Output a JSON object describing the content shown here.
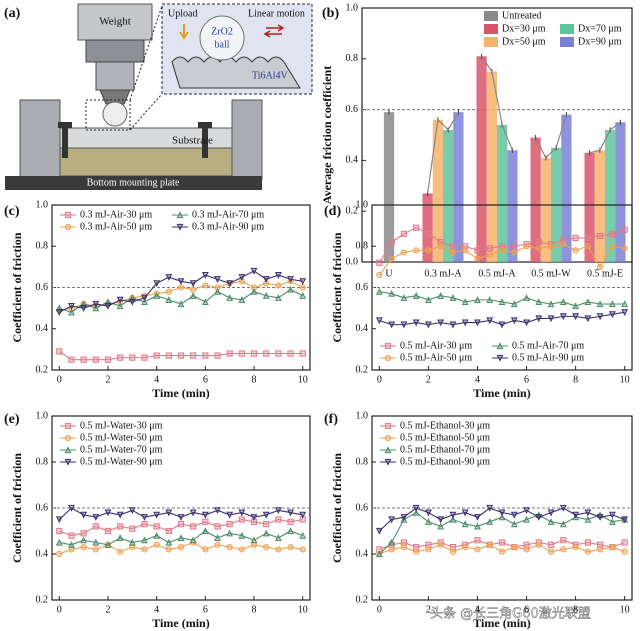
{
  "diagram": {
    "panel_label": "(a)",
    "labels": {
      "weight": "Weight",
      "upload": "Upload",
      "ball_material": "ZrO2",
      "ball": "ball",
      "motion": "Linear motion",
      "sample": "Ti6Al4V",
      "substrate": "Substrate",
      "plate": "Bottom mounting plate"
    }
  },
  "watermark": "头条 @长三角G60激光联盟",
  "chart_data": [
    {
      "type": "bar",
      "panel_label": "(b)",
      "ylabel": "Average friction coefficient",
      "categories": [
        "U",
        "0.3 mJ-A",
        "0.5 mJ-A",
        "0.5 mJ-W",
        "0.5 mJ-E"
      ],
      "series": [
        {
          "name": "Untreated",
          "color": "#8a8a8a",
          "values": [
            0.59,
            null,
            null,
            null,
            null
          ],
          "errors": [
            0.01,
            null,
            null,
            null,
            null
          ]
        },
        {
          "name": "Dx=30 μm",
          "color": "#d9556a",
          "values": [
            null,
            0.27,
            0.81,
            0.49,
            0.43
          ],
          "errors": [
            null,
            0.01,
            0.01,
            0.01,
            0.01
          ]
        },
        {
          "name": "Dx=50 μm",
          "color": "#f7b26b",
          "values": [
            null,
            0.56,
            0.75,
            0.41,
            0.44
          ],
          "errors": [
            null,
            0.01,
            0.01,
            0.01,
            0.01
          ]
        },
        {
          "name": "Dx=70 μm",
          "color": "#5fc49a",
          "values": [
            null,
            0.52,
            0.54,
            0.45,
            0.52
          ],
          "errors": [
            null,
            0.01,
            0.01,
            0.01,
            0.01
          ]
        },
        {
          "name": "Dx=90 μm",
          "color": "#7b7fd6",
          "values": [
            null,
            0.59,
            0.44,
            0.58,
            0.55
          ],
          "errors": [
            null,
            0.01,
            0.01,
            0.01,
            0.01
          ]
        }
      ],
      "ylim": [
        0,
        1
      ],
      "yticks": [
        {
          "value": 0,
          "label": "0.0"
        },
        0.2,
        0.4,
        0.6,
        0.8,
        {
          "value": 1,
          "label": "1.0"
        }
      ],
      "ref_line": 0.6
    },
    {
      "type": "line",
      "panel_label": "(c)",
      "xlabel": "Time (min)",
      "ylabel": "Coefficient of friction",
      "legend": "upper left",
      "x": [
        0,
        0.5,
        1,
        1.5,
        2,
        2.5,
        3,
        3.5,
        4,
        4.5,
        5,
        5.5,
        6,
        6.5,
        7,
        7.5,
        8,
        8.5,
        9,
        9.5,
        10
      ],
      "series": [
        {
          "name": "0.3 mJ-Air-30 μm",
          "color": "#e07a8a",
          "marker": "square",
          "values": [
            0.29,
            0.25,
            0.25,
            0.25,
            0.25,
            0.26,
            0.26,
            0.26,
            0.27,
            0.27,
            0.27,
            0.27,
            0.27,
            0.27,
            0.28,
            0.28,
            0.28,
            0.28,
            0.28,
            0.28,
            0.28
          ]
        },
        {
          "name": "0.3 mJ-Air-50 μm",
          "color": "#f0a050",
          "marker": "circle",
          "values": [
            0.49,
            0.5,
            0.52,
            0.51,
            0.52,
            0.53,
            0.55,
            0.56,
            0.57,
            0.58,
            0.6,
            0.59,
            0.61,
            0.6,
            0.62,
            0.63,
            0.6,
            0.62,
            0.61,
            0.63,
            0.6
          ]
        },
        {
          "name": "0.3 mJ-Air-70 μm",
          "color": "#4c8c6a",
          "marker": "tri-up",
          "values": [
            0.5,
            0.48,
            0.52,
            0.5,
            0.53,
            0.51,
            0.55,
            0.53,
            0.56,
            0.54,
            0.52,
            0.56,
            0.53,
            0.58,
            0.55,
            0.54,
            0.58,
            0.56,
            0.55,
            0.59,
            0.56
          ]
        },
        {
          "name": "0.3 mJ-Air-90 μm",
          "color": "#3b2f6e",
          "marker": "tri-down",
          "values": [
            0.48,
            0.51,
            0.5,
            0.52,
            0.51,
            0.54,
            0.53,
            0.55,
            0.62,
            0.65,
            0.63,
            0.62,
            0.66,
            0.64,
            0.62,
            0.65,
            0.68,
            0.64,
            0.66,
            0.64,
            0.63
          ]
        }
      ],
      "xlim": [
        -0.3,
        10.3
      ],
      "xticks": [
        0,
        2,
        4,
        6,
        8,
        10
      ],
      "ylim": [
        0.2,
        1
      ],
      "yticks": [
        0.2,
        0.4,
        0.6,
        0.8,
        {
          "value": 1,
          "label": "1.0"
        }
      ],
      "ref_line": 0.6
    },
    {
      "type": "line",
      "panel_label": "(d)",
      "xlabel": "Time (min)",
      "ylabel": "Coefficient of friction",
      "legend": "lower left",
      "x": [
        0,
        0.5,
        1,
        1.5,
        2,
        2.5,
        3,
        3.5,
        4,
        4.5,
        5,
        5.5,
        6,
        6.5,
        7,
        7.5,
        8,
        8.5,
        9,
        9.5,
        10
      ],
      "series": [
        {
          "name": "0.5 mJ-Air-30 μm",
          "color": "#e07a8a",
          "marker": "square",
          "values": [
            0.72,
            0.82,
            0.86,
            0.89,
            0.86,
            0.82,
            0.8,
            0.8,
            0.78,
            0.79,
            0.8,
            0.8,
            0.81,
            0.82,
            0.81,
            0.83,
            0.84,
            0.84,
            0.85,
            0.86,
            0.88
          ]
        },
        {
          "name": "0.5 mJ-Air-50 μm",
          "color": "#f0a050",
          "marker": "circle",
          "values": [
            0.66,
            0.74,
            0.77,
            0.78,
            0.78,
            0.8,
            0.77,
            0.78,
            0.74,
            0.76,
            0.78,
            0.77,
            0.8,
            0.79,
            0.8,
            0.81,
            0.78,
            0.8,
            0.7,
            0.8,
            0.79
          ]
        },
        {
          "name": "0.5 mJ-Air-70 μm",
          "color": "#4c8c6a",
          "marker": "tri-up",
          "values": [
            0.58,
            0.57,
            0.55,
            0.56,
            0.54,
            0.56,
            0.55,
            0.53,
            0.54,
            0.54,
            0.53,
            0.52,
            0.55,
            0.53,
            0.52,
            0.53,
            0.51,
            0.53,
            0.52,
            0.52,
            0.52
          ]
        },
        {
          "name": "0.5 mJ-Air-90 μm",
          "color": "#3b2f6e",
          "marker": "tri-down",
          "values": [
            0.44,
            0.42,
            0.42,
            0.43,
            0.42,
            0.43,
            0.42,
            0.43,
            0.43,
            0.44,
            0.42,
            0.44,
            0.43,
            0.45,
            0.45,
            0.46,
            0.46,
            0.45,
            0.46,
            0.47,
            0.48
          ]
        }
      ],
      "xlim": [
        -0.3,
        10.3
      ],
      "xticks": [
        0,
        2,
        4,
        6,
        8,
        10
      ],
      "ylim": [
        0.2,
        1
      ],
      "yticks": [
        0.2,
        0.4,
        0.6,
        0.8,
        {
          "value": 1,
          "label": "1.0"
        }
      ],
      "ref_line": 0.6
    },
    {
      "type": "line",
      "panel_label": "(e)",
      "xlabel": "Time (min)",
      "ylabel": "Coefficient of friction",
      "legend": "upper left",
      "x": [
        0,
        0.5,
        1,
        1.5,
        2,
        2.5,
        3,
        3.5,
        4,
        4.5,
        5,
        5.5,
        6,
        6.5,
        7,
        7.5,
        8,
        8.5,
        9,
        9.5,
        10
      ],
      "series": [
        {
          "name": "0.5 mJ-Water-30 μm",
          "color": "#e07a8a",
          "marker": "square",
          "values": [
            0.5,
            0.48,
            0.49,
            0.52,
            0.5,
            0.52,
            0.51,
            0.53,
            0.52,
            0.5,
            0.53,
            0.52,
            0.54,
            0.52,
            0.53,
            0.55,
            0.54,
            0.53,
            0.55,
            0.54,
            0.55
          ]
        },
        {
          "name": "0.5 mJ-Water-50 μm",
          "color": "#f0a050",
          "marker": "circle",
          "values": [
            0.4,
            0.42,
            0.43,
            0.42,
            0.44,
            0.41,
            0.43,
            0.42,
            0.44,
            0.42,
            0.43,
            0.45,
            0.42,
            0.44,
            0.43,
            0.42,
            0.44,
            0.43,
            0.42,
            0.43,
            0.42
          ]
        },
        {
          "name": "0.5 mJ-Water-70 μm",
          "color": "#4c8c6a",
          "marker": "tri-up",
          "values": [
            0.45,
            0.44,
            0.46,
            0.45,
            0.44,
            0.47,
            0.45,
            0.46,
            0.48,
            0.45,
            0.47,
            0.46,
            0.5,
            0.47,
            0.49,
            0.48,
            0.46,
            0.49,
            0.47,
            0.5,
            0.48
          ]
        },
        {
          "name": "0.5 mJ-Water-90 μm",
          "color": "#3b2f6e",
          "marker": "tri-down",
          "values": [
            0.55,
            0.6,
            0.57,
            0.56,
            0.58,
            0.57,
            0.59,
            0.56,
            0.57,
            0.58,
            0.56,
            0.58,
            0.57,
            0.59,
            0.57,
            0.58,
            0.56,
            0.57,
            0.59,
            0.58,
            0.57
          ]
        }
      ],
      "xlim": [
        -0.3,
        10.3
      ],
      "xticks": [
        0,
        2,
        4,
        6,
        8,
        10
      ],
      "ylim": [
        0.2,
        1
      ],
      "yticks": [
        0.2,
        0.4,
        0.6,
        0.8,
        {
          "value": 1,
          "label": "1.0"
        }
      ],
      "ref_line": 0.6
    },
    {
      "type": "line",
      "panel_label": "(f)",
      "xlabel": "Time (min)",
      "ylabel": "Coefficient of friction",
      "legend": "upper left",
      "x": [
        0,
        0.5,
        1,
        1.5,
        2,
        2.5,
        3,
        3.5,
        4,
        4.5,
        5,
        5.5,
        6,
        6.5,
        7,
        7.5,
        8,
        8.5,
        9,
        9.5,
        10
      ],
      "series": [
        {
          "name": "0.5 mJ-Ethanol-30 μm",
          "color": "#e07a8a",
          "marker": "square",
          "values": [
            0.42,
            0.44,
            0.45,
            0.43,
            0.44,
            0.45,
            0.43,
            0.44,
            0.46,
            0.44,
            0.45,
            0.43,
            0.44,
            0.45,
            0.44,
            0.46,
            0.44,
            0.45,
            0.44,
            0.43,
            0.45
          ]
        },
        {
          "name": "0.5 mJ-Ethanol-50 μm",
          "color": "#f0a050",
          "marker": "circle",
          "values": [
            0.4,
            0.42,
            0.43,
            0.41,
            0.42,
            0.44,
            0.41,
            0.43,
            0.42,
            0.44,
            0.41,
            0.43,
            0.42,
            0.44,
            0.41,
            0.42,
            0.43,
            0.41,
            0.42,
            0.43,
            0.41
          ]
        },
        {
          "name": "0.5 mJ-Ethanol-70 μm",
          "color": "#4c8c6a",
          "marker": "tri-up",
          "values": [
            0.4,
            0.45,
            0.55,
            0.58,
            0.54,
            0.52,
            0.55,
            0.53,
            0.52,
            0.54,
            0.56,
            0.53,
            0.55,
            0.57,
            0.54,
            0.53,
            0.56,
            0.55,
            0.57,
            0.54,
            0.55
          ]
        },
        {
          "name": "0.5 mJ-Ethanol-90 μm",
          "color": "#3b2f6e",
          "marker": "tri-down",
          "values": [
            0.5,
            0.55,
            0.56,
            0.6,
            0.58,
            0.55,
            0.57,
            0.58,
            0.56,
            0.6,
            0.58,
            0.57,
            0.59,
            0.56,
            0.58,
            0.6,
            0.57,
            0.58,
            0.56,
            0.57,
            0.55
          ]
        }
      ],
      "xlim": [
        -0.3,
        10.3
      ],
      "xticks": [
        0,
        2,
        4,
        6,
        8,
        10
      ],
      "ylim": [
        0.2,
        1
      ],
      "yticks": [
        0.2,
        0.4,
        0.6,
        0.8,
        {
          "value": 1,
          "label": "1.0"
        }
      ],
      "ref_line": 0.6
    }
  ]
}
